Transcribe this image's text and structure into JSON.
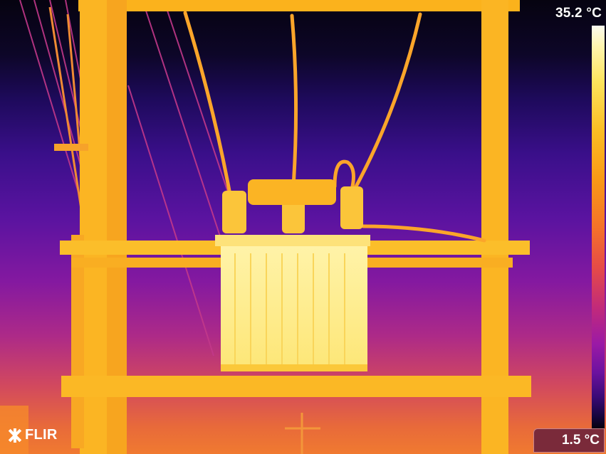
{
  "overlay": {
    "max_temp": "35.2 °C",
    "min_temp": "1.5 °C",
    "logo_text": "FLIR"
  },
  "palette": {
    "hot": "#fff4b0",
    "warm": "#fbbd24",
    "mid": "#f57229",
    "cool": "#9b1aa6",
    "cold": "#0b0520"
  },
  "icons": {
    "logo_mark": "flir-logo-icon"
  }
}
